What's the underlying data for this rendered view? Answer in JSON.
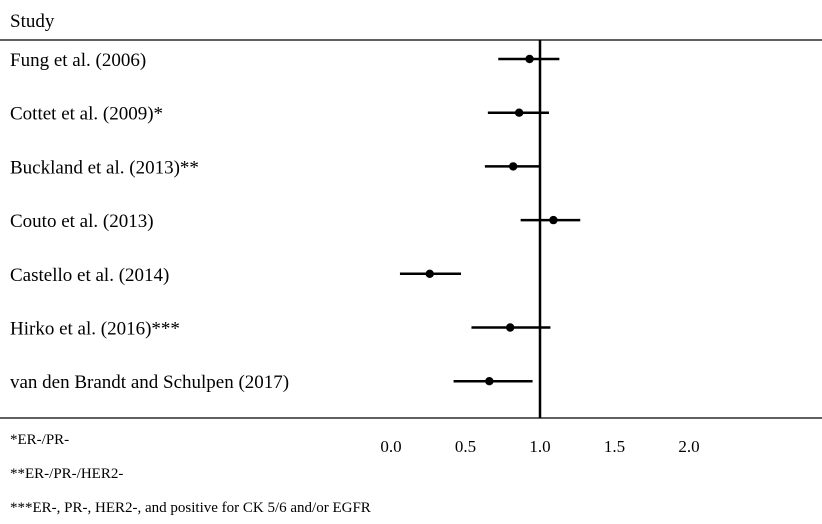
{
  "chart_data": {
    "type": "forest",
    "column_header": "Study",
    "studies": [
      {
        "label": "Fung et al. (2006)",
        "estimate": 0.93,
        "ci": [
          0.72,
          1.13
        ]
      },
      {
        "label": "Cottet et al. (2009)*",
        "estimate": 0.86,
        "ci": [
          0.65,
          1.06
        ]
      },
      {
        "label": "Buckland et al. (2013)**",
        "estimate": 0.82,
        "ci": [
          0.63,
          1.0
        ]
      },
      {
        "label": "Couto et al. (2013)",
        "estimate": 1.09,
        "ci": [
          0.87,
          1.27
        ]
      },
      {
        "label": "Castello et al. (2014)",
        "estimate": 0.26,
        "ci": [
          0.06,
          0.47
        ]
      },
      {
        "label": "Hirko et al. (2016)***",
        "estimate": 0.8,
        "ci": [
          0.54,
          1.07
        ]
      },
      {
        "label": "van den Brandt and Schulpen (2017)",
        "estimate": 0.66,
        "ci": [
          0.42,
          0.95
        ]
      }
    ],
    "x_ticks": [
      "0.0",
      "0.5",
      "1.0",
      "1.5",
      "2.0"
    ],
    "x_tick_values": [
      0.0,
      0.5,
      1.0,
      1.5,
      2.0
    ],
    "reference_line": 1.0,
    "xlim": [
      0.0,
      2.0
    ]
  },
  "footnotes": [
    "*ER-/PR-",
    "**ER-/PR-/HER2-",
    "***ER-, PR-, HER2-, and positive for CK 5/6 and/or EGFR"
  ]
}
